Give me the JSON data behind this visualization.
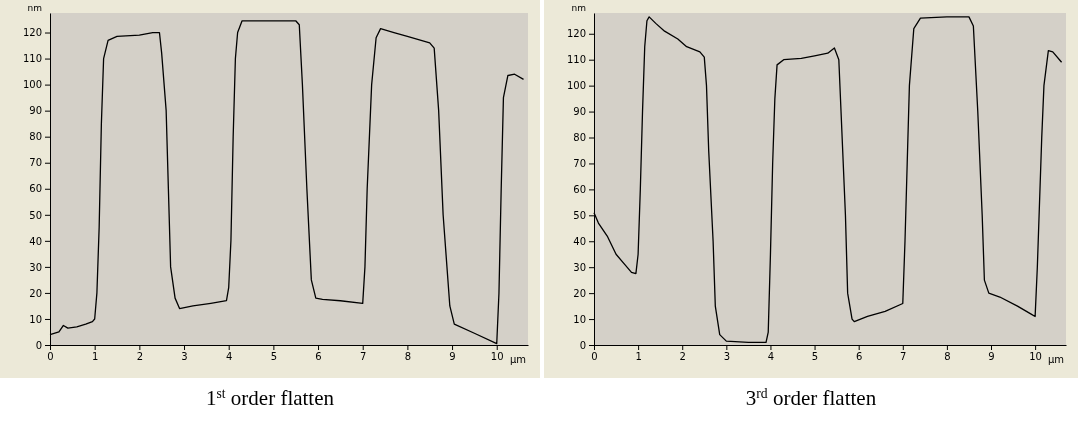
{
  "chart_data": [
    {
      "type": "line",
      "title": "1$^{st}$ order flatten",
      "xlabel": "μm",
      "ylabel": "nm",
      "xlim": [
        0,
        10.7
      ],
      "ylim": [
        0,
        127.5
      ],
      "xticks": [
        0,
        1,
        2,
        3,
        4,
        5,
        6,
        7,
        8,
        9,
        10
      ],
      "yticks": [
        0,
        10,
        20,
        30,
        40,
        50,
        60,
        70,
        80,
        90,
        100,
        110,
        120
      ],
      "grid": false,
      "series": [
        {
          "color": "#000000",
          "x": [
            0,
            0.2,
            0.3,
            0.4,
            0.6,
            0.8,
            0.95,
            1.0,
            1.05,
            1.1,
            1.15,
            1.2,
            1.3,
            1.5,
            2.0,
            2.3,
            2.45,
            2.5,
            2.6,
            2.65,
            2.7,
            2.8,
            2.9,
            3.2,
            3.6,
            3.95,
            4.0,
            4.05,
            4.1,
            4.15,
            4.2,
            4.3,
            5.0,
            5.5,
            5.58,
            5.65,
            5.75,
            5.85,
            5.95,
            6.1,
            6.5,
            7.0,
            7.05,
            7.1,
            7.2,
            7.3,
            7.4,
            7.7,
            8.0,
            8.5,
            8.6,
            8.7,
            8.8,
            8.95,
            9.05,
            9.5,
            10.0,
            10.05,
            10.1,
            10.15,
            10.25,
            10.4,
            10.6
          ],
          "values": [
            4,
            5,
            7.5,
            6.5,
            7,
            8,
            9,
            10,
            20,
            45,
            85,
            110,
            117,
            118.5,
            119,
            120,
            120,
            112,
            90,
            60,
            30,
            18,
            14,
            15,
            16,
            17,
            22,
            40,
            80,
            110,
            120,
            124.5,
            124.5,
            124.5,
            123,
            100,
            60,
            25,
            18,
            17.5,
            17,
            16,
            30,
            60,
            100,
            118,
            121.5,
            120,
            118.5,
            116,
            114,
            90,
            50,
            15,
            8,
            4.5,
            0.5,
            20,
            60,
            95,
            103.5,
            104,
            102
          ]
        }
      ]
    },
    {
      "type": "line",
      "title": "3$^{rd}$ order flatten",
      "xlabel": "μm",
      "ylabel": "nm",
      "xlim": [
        0,
        10.7
      ],
      "ylim": [
        0,
        128
      ],
      "xticks": [
        0,
        1,
        2,
        3,
        4,
        5,
        6,
        7,
        8,
        9,
        10
      ],
      "yticks": [
        0,
        10,
        20,
        30,
        40,
        50,
        60,
        70,
        80,
        90,
        100,
        110,
        120
      ],
      "grid": false,
      "series": [
        {
          "color": "#000000",
          "x": [
            0,
            0.1,
            0.3,
            0.5,
            0.7,
            0.85,
            0.95,
            1.0,
            1.05,
            1.1,
            1.15,
            1.2,
            1.25,
            1.4,
            1.6,
            1.9,
            2.1,
            2.4,
            2.5,
            2.55,
            2.6,
            2.7,
            2.75,
            2.85,
            3.0,
            3.5,
            3.9,
            3.95,
            4.0,
            4.05,
            4.1,
            4.15,
            4.3,
            4.7,
            5.0,
            5.3,
            5.45,
            5.55,
            5.6,
            5.7,
            5.75,
            5.85,
            5.9,
            6.2,
            6.6,
            7.0,
            7.05,
            7.1,
            7.15,
            7.25,
            7.4,
            8.0,
            8.5,
            8.6,
            8.7,
            8.8,
            8.85,
            8.95,
            9.2,
            9.6,
            9.9,
            10.0,
            10.05,
            10.15,
            10.2,
            10.3,
            10.4,
            10.6
          ],
          "values": [
            51,
            47,
            42,
            35,
            31,
            28,
            27.5,
            35,
            60,
            90,
            115,
            125,
            126.5,
            124,
            121,
            118,
            115,
            113,
            111,
            100,
            75,
            40,
            15,
            4,
            1.5,
            1,
            1,
            5,
            35,
            70,
            95,
            108,
            110,
            110.5,
            111.5,
            112.5,
            114.5,
            110,
            90,
            50,
            20,
            10,
            9,
            11,
            13,
            16,
            40,
            70,
            100,
            122,
            126,
            126.5,
            126.5,
            123,
            90,
            50,
            25,
            20,
            18.5,
            15,
            12,
            11,
            30,
            80,
            100,
            113.5,
            113,
            109
          ]
        }
      ]
    }
  ]
}
